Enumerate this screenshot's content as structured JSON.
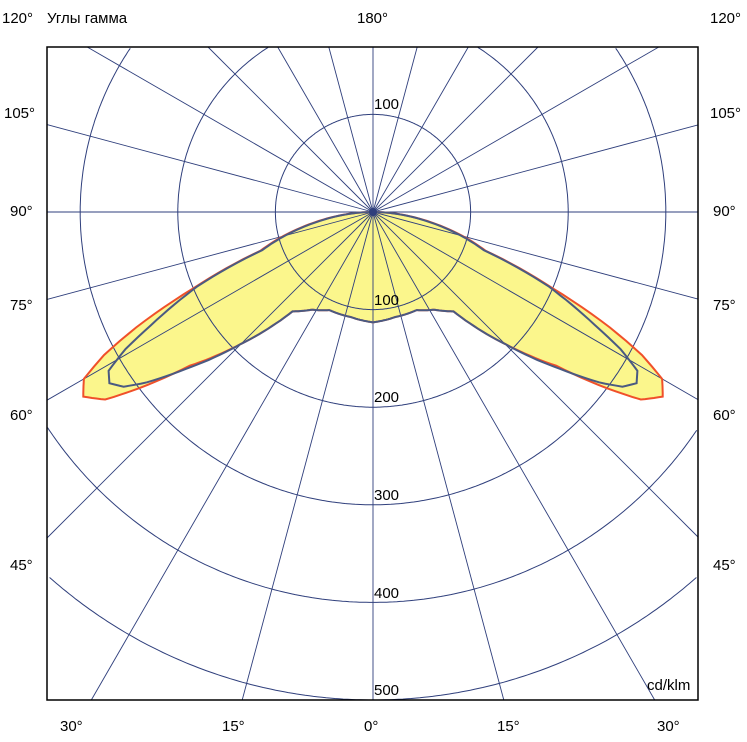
{
  "title": "Углы гамма",
  "unit": "cd/klm",
  "chart_data": {
    "type": "polar",
    "title": "Углы гамма",
    "unit_label": "cd/klm",
    "radial_ticks": [
      100,
      200,
      300,
      400,
      500
    ],
    "radial_range": [
      0,
      500
    ],
    "angle_step_deg": 15,
    "grid": true,
    "symmetric": true,
    "angle_labels": {
      "top_left": "120°",
      "top_center": "180°",
      "top_right": "120°",
      "left": [
        "105°",
        "90°",
        "75°",
        "60°",
        "45°"
      ],
      "right": [
        "105°",
        "90°",
        "75°",
        "60°",
        "45°"
      ],
      "bottom": [
        "30°",
        "15°",
        "0°",
        "15°",
        "30°"
      ]
    },
    "radial_labels": {
      "upper": "100",
      "lower": [
        "100",
        "200",
        "300",
        "400",
        "500"
      ]
    },
    "series": [
      {
        "color": "#f0502a",
        "fill": "#fbf68c",
        "gamma": [
          0,
          12,
          24,
          32,
          39,
          45,
          50,
          53,
          55,
          57.5,
          60,
          62,
          64,
          67,
          71,
          75,
          80,
          85,
          90
        ],
        "intensity": [
          113,
          110,
          110,
          118,
          131,
          191,
          245,
          300,
          335,
          352,
          342,
          312,
          270,
          200,
          122,
          95,
          60,
          28,
          0
        ]
      },
      {
        "color": "#4a5a82",
        "gamma": [
          0,
          12,
          24,
          32,
          39,
          45,
          50,
          53,
          55,
          57,
          59,
          61,
          63,
          66,
          67,
          71,
          75,
          80,
          85,
          90
        ],
        "intensity": [
          113,
          110,
          110,
          118,
          131,
          191,
          250,
          290,
          312,
          322,
          316,
          290,
          255,
          210,
          196,
          120,
          93,
          58,
          27,
          0
        ]
      }
    ]
  },
  "colors": {
    "grid": "#2f3f7c",
    "fill": "#fbf68c",
    "outer": "#f0502a",
    "inner": "#4a5a82"
  }
}
